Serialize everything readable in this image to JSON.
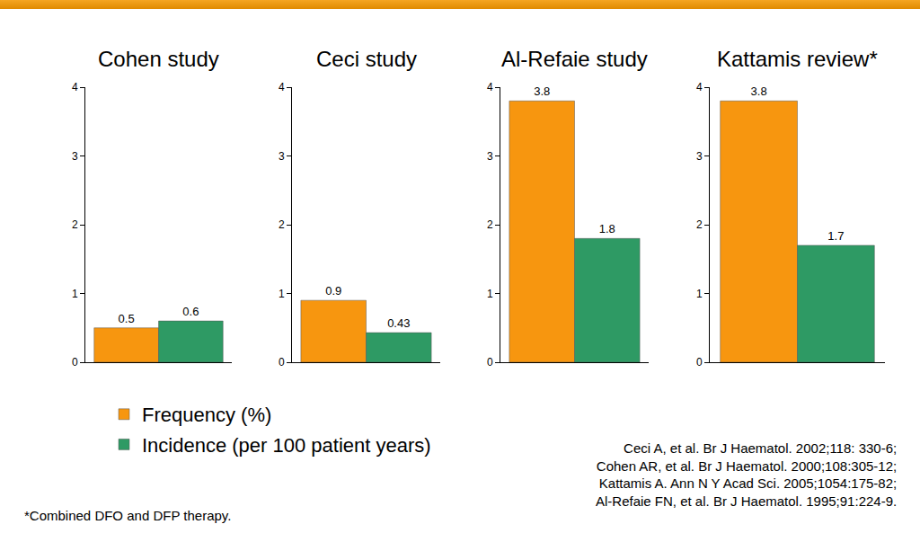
{
  "chart_data": [
    {
      "type": "bar",
      "title": "Cohen study",
      "categories": [
        null
      ],
      "series": [
        {
          "name": "Frequency (%)",
          "color": "#f7960f",
          "values": [
            0.5
          ]
        },
        {
          "name": "Incidence (per 100 patient years)",
          "color": "#2e9a64",
          "values": [
            0.6
          ]
        }
      ],
      "ylim": [
        0,
        4
      ],
      "yticks": [
        0,
        1,
        2,
        3,
        4
      ],
      "grid": false,
      "data_labels": true,
      "tick_labels": "y"
    },
    {
      "type": "bar",
      "title": "Ceci study",
      "categories": [
        null
      ],
      "series": [
        {
          "name": "Frequency (%)",
          "color": "#f7960f",
          "values": [
            0.9
          ]
        },
        {
          "name": "Incidence (per 100 patient years)",
          "color": "#2e9a64",
          "values": [
            0.43
          ]
        }
      ],
      "ylim": [
        0,
        4
      ],
      "yticks": [
        0,
        1,
        2,
        3,
        4
      ],
      "grid": false,
      "data_labels": true,
      "tick_labels": "y"
    },
    {
      "type": "bar",
      "title": "Al-Refaie study",
      "categories": [
        null
      ],
      "series": [
        {
          "name": "Frequency (%)",
          "color": "#f7960f",
          "values": [
            3.8
          ]
        },
        {
          "name": "Incidence (per 100 patient years)",
          "color": "#2e9a64",
          "values": [
            1.8
          ]
        }
      ],
      "ylim": [
        0,
        4
      ],
      "yticks": [
        0,
        1,
        2,
        3,
        4
      ],
      "grid": false,
      "data_labels": true,
      "tick_labels": "y"
    },
    {
      "type": "bar",
      "title": "Kattamis review*",
      "categories": [
        null
      ],
      "series": [
        {
          "name": "Frequency (%)",
          "color": "#f7960f",
          "values": [
            3.8
          ]
        },
        {
          "name": "Incidence (per 100 patient years)",
          "color": "#2e9a64",
          "values": [
            1.7
          ]
        }
      ],
      "ylim": [
        0,
        4
      ],
      "yticks": [
        0,
        1,
        2,
        3,
        4
      ],
      "grid": false,
      "data_labels": true,
      "tick_labels": "y"
    }
  ],
  "annotations": {
    "references": [
      "Ceci A, et al. Br J Haematol. 2002;118: 330-6;",
      "Cohen AR, et al. Br J Haematol. 2000;108:305-12;",
      "Kattamis A. Ann N Y Acad Sci. 2005;1054:175-82;",
      "Al-Refaie FN, et al. Br J Haematol. 1995;91:224-9."
    ],
    "footnote": "*Combined DFO and DFP therapy."
  }
}
